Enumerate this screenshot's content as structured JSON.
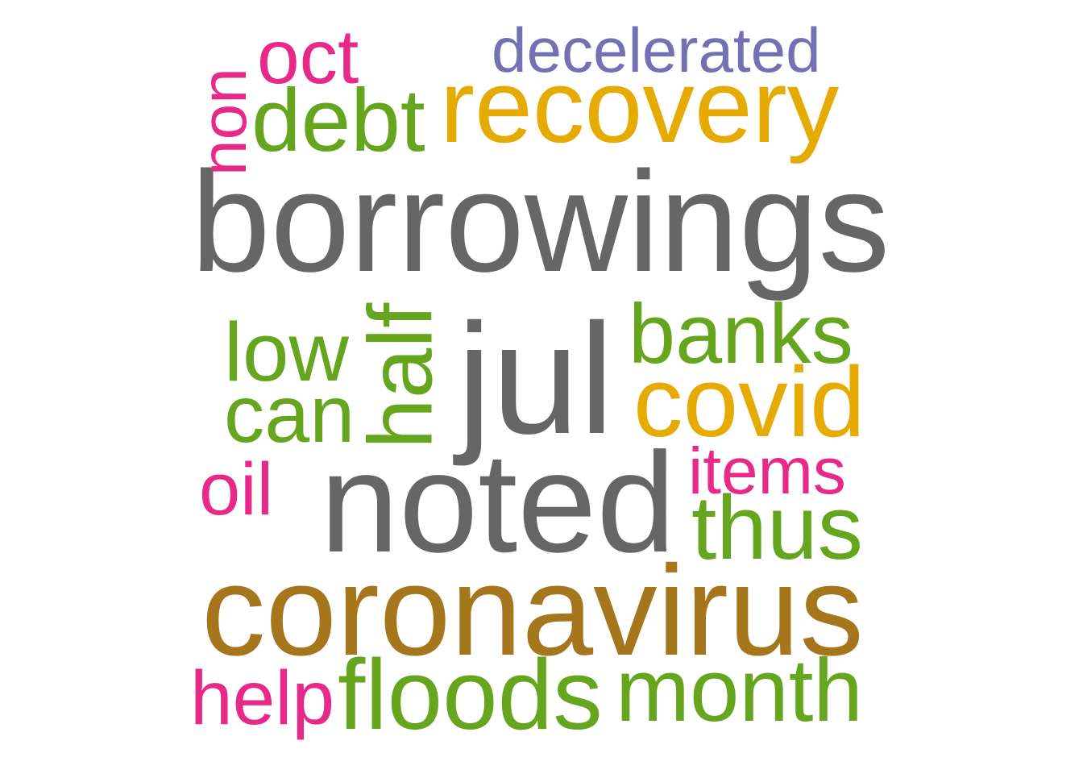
{
  "colors": {
    "background": "#ffffff",
    "gray": "#666666",
    "green": "#66a61e",
    "gold": "#e6ab02",
    "brown": "#a6761d",
    "pink": "#e7298a",
    "purple": "#7570b3"
  },
  "words": [
    {
      "text": "borrowings",
      "color": "#666666"
    },
    {
      "text": "noted",
      "color": "#666666"
    },
    {
      "text": "jul",
      "color": "#666666"
    },
    {
      "text": "coronavirus",
      "color": "#a6761d"
    },
    {
      "text": "recovery",
      "color": "#e6ab02"
    },
    {
      "text": "covid",
      "color": "#e6ab02"
    },
    {
      "text": "decelerated",
      "color": "#7570b3"
    },
    {
      "text": "debt",
      "color": "#66a61e"
    },
    {
      "text": "banks",
      "color": "#66a61e"
    },
    {
      "text": "low",
      "color": "#66a61e"
    },
    {
      "text": "can",
      "color": "#66a61e"
    },
    {
      "text": "half",
      "color": "#66a61e"
    },
    {
      "text": "thus",
      "color": "#66a61e"
    },
    {
      "text": "floods",
      "color": "#66a61e"
    },
    {
      "text": "month",
      "color": "#66a61e"
    },
    {
      "text": "oct",
      "color": "#e7298a"
    },
    {
      "text": "non",
      "color": "#e7298a"
    },
    {
      "text": "oil",
      "color": "#e7298a"
    },
    {
      "text": "items",
      "color": "#e7298a"
    },
    {
      "text": "help",
      "color": "#e7298a"
    }
  ]
}
